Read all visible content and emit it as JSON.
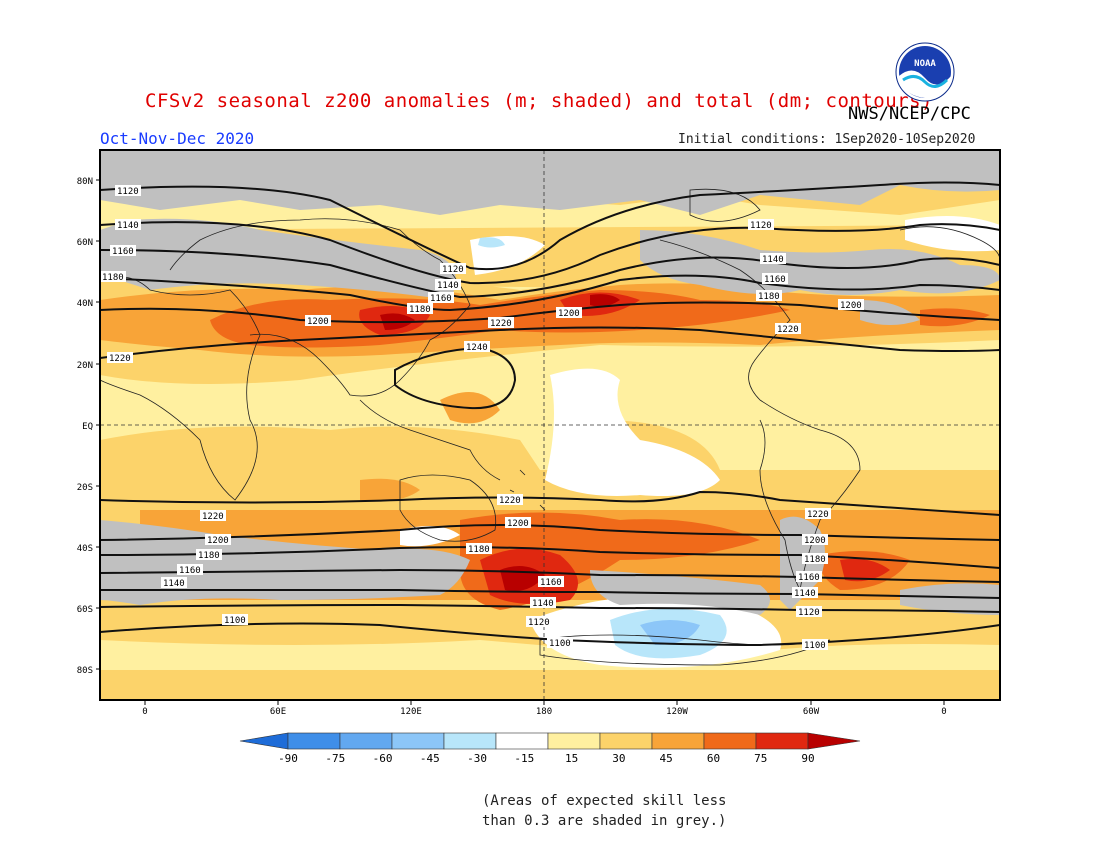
{
  "title": "CFSv2 seasonal z200 anomalies (m; shaded) and total (dm; contours)",
  "agency": "NWS/NCEP/CPC",
  "logo_text": "NOAA",
  "season": "Oct-Nov-Dec 2020",
  "initial_conditions": "Initial conditions: 1Sep2020-10Sep2020",
  "lat_labels": [
    "80N",
    "60N",
    "40N",
    "20N",
    "EQ",
    "20S",
    "40S",
    "60S",
    "80S"
  ],
  "lon_labels": [
    "0",
    "60E",
    "120E",
    "180",
    "120W",
    "60W",
    "0"
  ],
  "colorbar": {
    "ticks": [
      "-90",
      "-75",
      "-60",
      "-45",
      "-30",
      "-15",
      "15",
      "30",
      "45",
      "60",
      "75",
      "90"
    ],
    "colors": [
      "#1e6cd8",
      "#3f8ee8",
      "#62a8f0",
      "#8cc6f8",
      "#b8e6fa",
      "#ffffff",
      "#fff0a0",
      "#fcd36a",
      "#f8a438",
      "#f06a1a",
      "#e02810",
      "#b80000"
    ]
  },
  "contour_labels": [
    "1120",
    "1140",
    "1160",
    "1180",
    "1200",
    "1220",
    "1240",
    "1100"
  ],
  "skill_note": [
    "(Areas of expected skill less",
    "than 0.3 are shaded in grey.)"
  ]
}
